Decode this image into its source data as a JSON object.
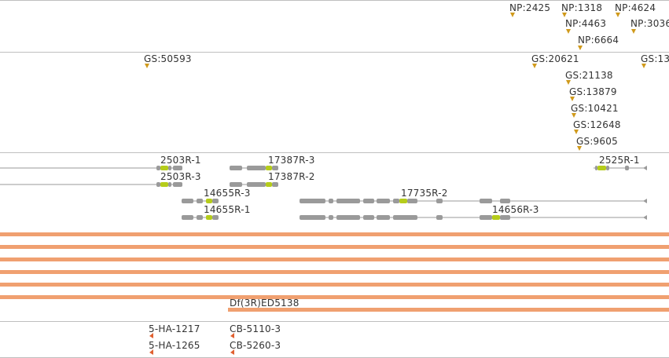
{
  "colors": {
    "separator": "#bfbfbf",
    "insertion_marker": "#d09a1c",
    "transcript_line": "#9a9a9a",
    "exon": "#9a9a9a",
    "cds_highlight": "#b5cc1a",
    "deficiency_bar": "#f0a070",
    "pcr_marker": "#e06030"
  },
  "tracks": {
    "np_insertions": [
      {
        "label": "NP:2425"
      },
      {
        "label": "NP:1318"
      },
      {
        "label": "NP:4624"
      },
      {
        "label": "NP:4463"
      },
      {
        "label": "NP:3036"
      },
      {
        "label": "NP:6664"
      }
    ],
    "gs_insertions": [
      {
        "label": "GS:50593"
      },
      {
        "label": "GS:20621"
      },
      {
        "label": "GS:13"
      },
      {
        "label": "GS:21138"
      },
      {
        "label": "GS:13879"
      },
      {
        "label": "GS:10421"
      },
      {
        "label": "GS:12648"
      },
      {
        "label": "GS:9605"
      }
    ],
    "transcripts": [
      {
        "label": "2503R-1"
      },
      {
        "label": "2503R-3"
      },
      {
        "label": "17387R-3"
      },
      {
        "label": "17387R-2"
      },
      {
        "label": "14655R-3"
      },
      {
        "label": "14655R-1"
      },
      {
        "label": "17735R-2"
      },
      {
        "label": "14656R-3"
      },
      {
        "label": "2525R-1"
      }
    ],
    "deficiencies": [
      {
        "label": "Df(3R)ED5138"
      }
    ],
    "pcr_products": [
      {
        "label": "5-HA-1217"
      },
      {
        "label": "5-HA-1265"
      },
      {
        "label": "CB-5110-3"
      },
      {
        "label": "CB-5260-3"
      }
    ]
  }
}
